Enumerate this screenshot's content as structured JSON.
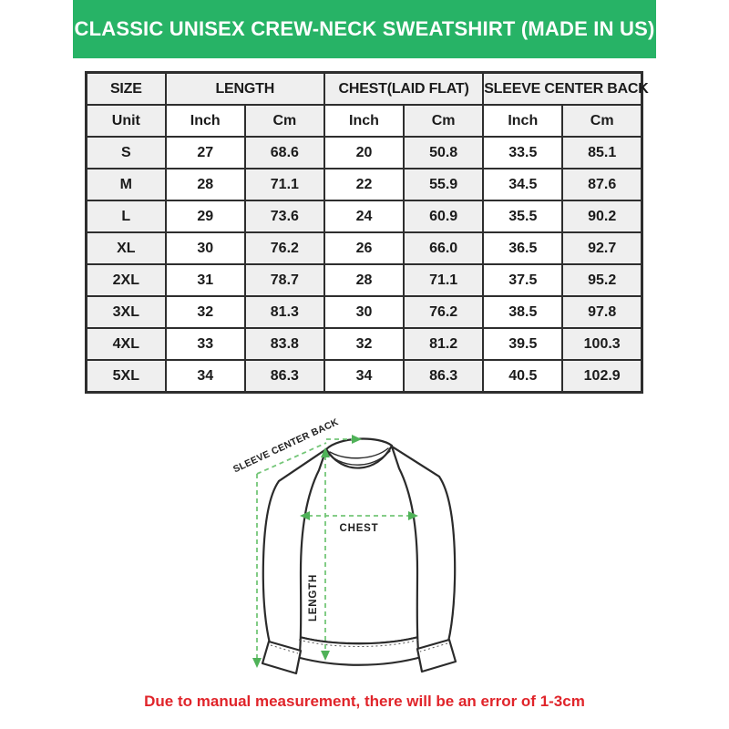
{
  "title": "CLASSIC UNISEX CREW-NECK SWEATSHIRT (MADE IN US)",
  "colors": {
    "header_bg": "#27b366",
    "note_red": "#e0242a",
    "arrow_green": "#74c678",
    "arrowhead_green": "#4fb258",
    "table_border": "#2e2e2e",
    "cell_gray": "#efefef"
  },
  "table": {
    "groups": [
      {
        "label": "SIZE",
        "span": 1
      },
      {
        "label": "LENGTH",
        "span": 2
      },
      {
        "label": "CHEST(LAID FLAT)",
        "span": 2
      },
      {
        "label": "SLEEVE CENTER BACK",
        "span": 2
      }
    ],
    "units": [
      "Unit",
      "Inch",
      "Cm",
      "Inch",
      "Cm",
      "Inch",
      "Cm"
    ],
    "rows": [
      [
        "S",
        "27",
        "68.6",
        "20",
        "50.8",
        "33.5",
        "85.1"
      ],
      [
        "M",
        "28",
        "71.1",
        "22",
        "55.9",
        "34.5",
        "87.6"
      ],
      [
        "L",
        "29",
        "73.6",
        "24",
        "60.9",
        "35.5",
        "90.2"
      ],
      [
        "XL",
        "30",
        "76.2",
        "26",
        "66.0",
        "36.5",
        "92.7"
      ],
      [
        "2XL",
        "31",
        "78.7",
        "28",
        "71.1",
        "37.5",
        "95.2"
      ],
      [
        "3XL",
        "32",
        "81.3",
        "30",
        "76.2",
        "38.5",
        "97.8"
      ],
      [
        "4XL",
        "33",
        "83.8",
        "32",
        "81.2",
        "39.5",
        "100.3"
      ],
      [
        "5XL",
        "34",
        "86.3",
        "34",
        "86.3",
        "40.5",
        "102.9"
      ]
    ]
  },
  "diagram": {
    "labels": {
      "sleeve_center_back": "SLEEVE CENTER BACK",
      "chest": "CHEST",
      "length": "LENGTH"
    }
  },
  "note": "Due to manual measurement, there will be an error of 1-3cm"
}
